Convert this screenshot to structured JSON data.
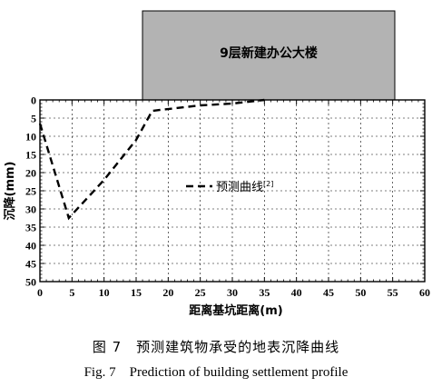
{
  "chart_data": {
    "type": "line",
    "building_label": "9层新建办公大楼",
    "xlabel": "距离基坑距离(m)",
    "ylabel": "沉降(mm)",
    "xlim": [
      0,
      60
    ],
    "ylim": [
      0,
      50
    ],
    "y_inverted": true,
    "x_ticks": [
      0,
      5,
      10,
      15,
      20,
      25,
      30,
      35,
      40,
      45,
      50,
      55,
      60
    ],
    "y_ticks": [
      0,
      5,
      10,
      15,
      20,
      25,
      30,
      35,
      40,
      45,
      50
    ],
    "grid": true,
    "legend_position": "center-left",
    "series": [
      {
        "name": "预测曲线",
        "name_superscript": "[2]",
        "style": "dashed",
        "x": [
          0,
          4.5,
          10,
          15,
          17.5,
          25,
          30,
          35
        ],
        "y": [
          6.5,
          32.5,
          22,
          11,
          3,
          1.5,
          1,
          0
        ]
      }
    ]
  },
  "caption_cn": "图 7　预测建筑物承受的地表沉降曲线",
  "caption_en": "Fig. 7　Prediction of building settlement profile",
  "colors": {
    "building_fill": "#b3b3b3",
    "axis": "#000000",
    "grid": "#000000",
    "curve": "#000000"
  }
}
